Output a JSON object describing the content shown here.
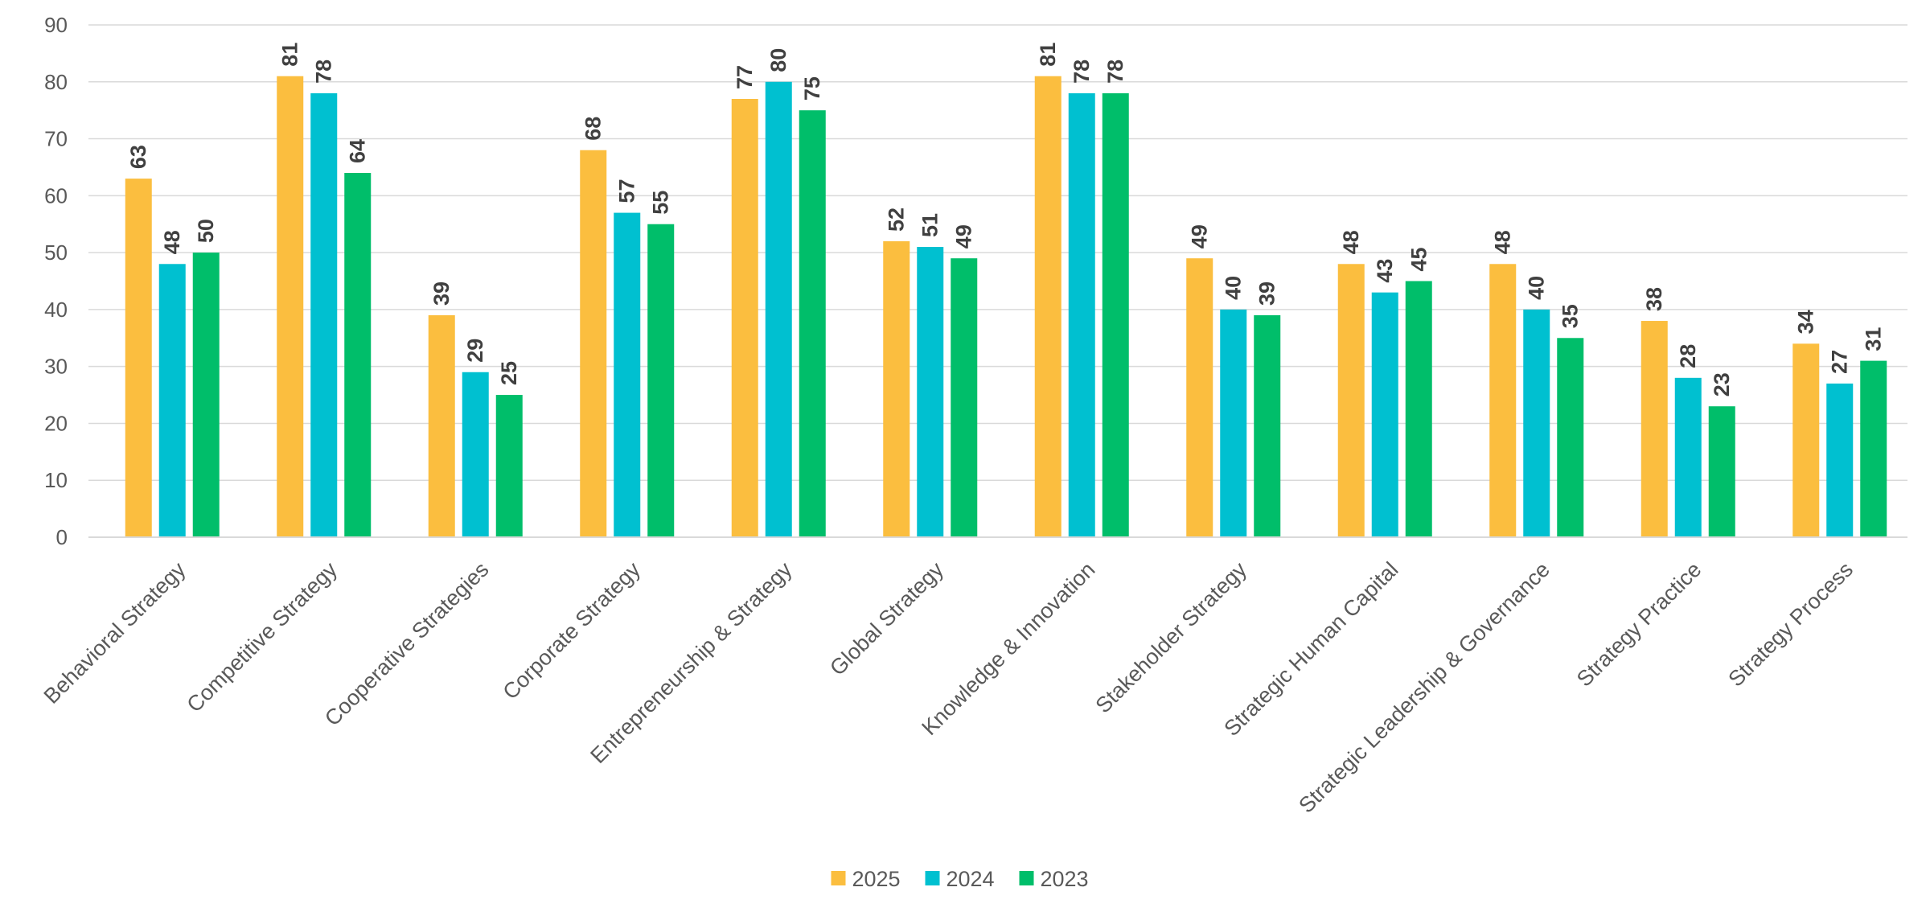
{
  "chart_data": {
    "type": "bar",
    "title": "",
    "xlabel": "",
    "ylabel": "",
    "ylim": [
      0,
      90
    ],
    "yticks": [
      0,
      10,
      20,
      30,
      40,
      50,
      60,
      70,
      80,
      90
    ],
    "grid": true,
    "legend_position": "bottom",
    "categories": [
      "Behavioral Strategy",
      "Competitive Strategy",
      "Cooperative Strategies",
      "Corporate Strategy",
      "Entrepreneurship & Strategy",
      "Global Strategy",
      "Knowledge & Innovation",
      "Stakeholder Strategy",
      "Strategic Human Capital",
      "Strategic Leadership & Governance",
      "Strategy Practice",
      "Strategy Process"
    ],
    "series": [
      {
        "name": "2025",
        "color": "#FBBE3F",
        "values": [
          63,
          81,
          39,
          68,
          77,
          52,
          81,
          49,
          48,
          48,
          38,
          34
        ]
      },
      {
        "name": "2024",
        "color": "#00C0D0",
        "values": [
          48,
          78,
          29,
          57,
          80,
          51,
          78,
          40,
          43,
          40,
          28,
          27
        ]
      },
      {
        "name": "2023",
        "color": "#00BE6A",
        "values": [
          50,
          64,
          25,
          55,
          75,
          49,
          78,
          39,
          45,
          35,
          23,
          31
        ]
      }
    ]
  },
  "colors": {
    "grid": "#D9D9D9",
    "axis": "#D9D9D9",
    "text": "#595959",
    "data_label": "#404040"
  }
}
